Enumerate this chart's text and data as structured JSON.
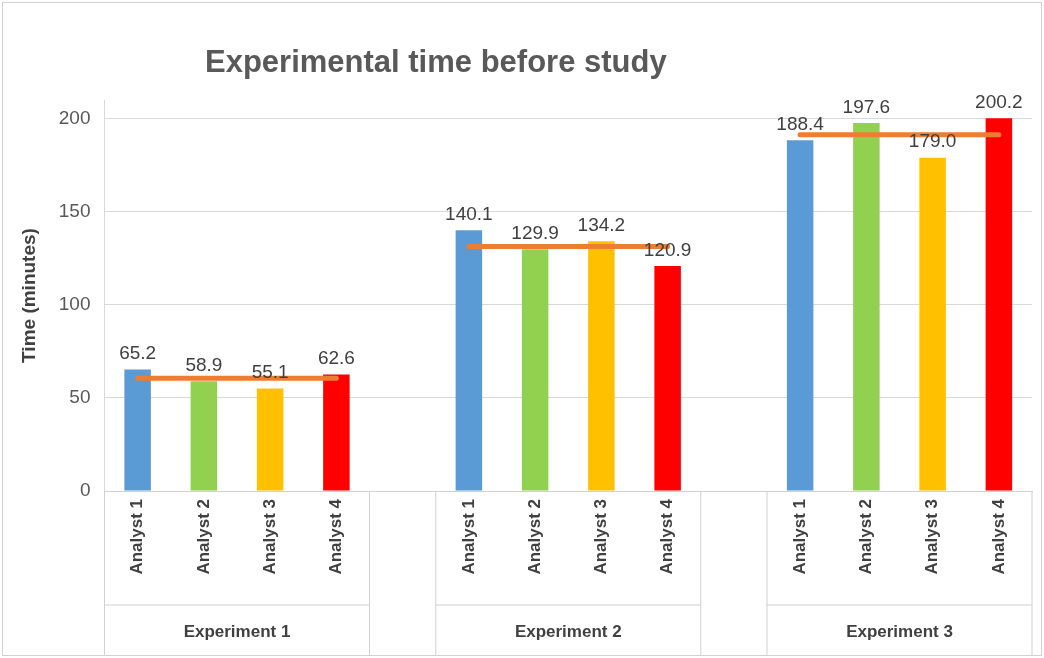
{
  "chart_data": {
    "type": "bar",
    "title": "Experimental time before study",
    "ylabel": "Time (minutes)",
    "categories": [
      "Analyst 1",
      "Analyst 2",
      "Analyst 3",
      "Analyst 4",
      null,
      "Analyst 1",
      "Analyst 2",
      "Analyst 3",
      "Analyst 4",
      null,
      "Analyst 1",
      "Analyst 2",
      "Analyst 3",
      "Analyst 4"
    ],
    "series": [
      {
        "colors": [
          "#5b9bd5",
          "#92d050",
          "#ffc000",
          "#ff0000",
          null,
          "#5b9bd5",
          "#92d050",
          "#ffc000",
          "#ff0000",
          null,
          "#5b9bd5",
          "#92d050",
          "#ffc000",
          "#ff0000"
        ],
        "values": [
          65.2,
          58.9,
          55.1,
          62.6,
          null,
          140.1,
          129.9,
          134.2,
          120.9,
          null,
          188.4,
          197.6,
          179.0,
          200.2
        ],
        "value_labels": [
          "65.2",
          "58.9",
          "55.1",
          "62.6",
          null,
          "140.1",
          "129.9",
          "134.2",
          "120.9",
          null,
          "188.4",
          "197.6",
          "179.0",
          "200.2"
        ]
      },
      {
        "type": "line",
        "color": "#ed7d31",
        "values": [
          60.5,
          60.5,
          60.5,
          60.5,
          null,
          131.3,
          131.3,
          131.3,
          131.3,
          null,
          191.3,
          191.3,
          191.3,
          191.3
        ]
      }
    ],
    "ylim": [
      0,
      210
    ],
    "yticks": [
      0,
      50,
      100,
      150,
      200
    ],
    "grid": "y",
    "annotations": [
      "Experiment 1",
      "Experiment 2",
      "Experiment 3"
    ]
  }
}
